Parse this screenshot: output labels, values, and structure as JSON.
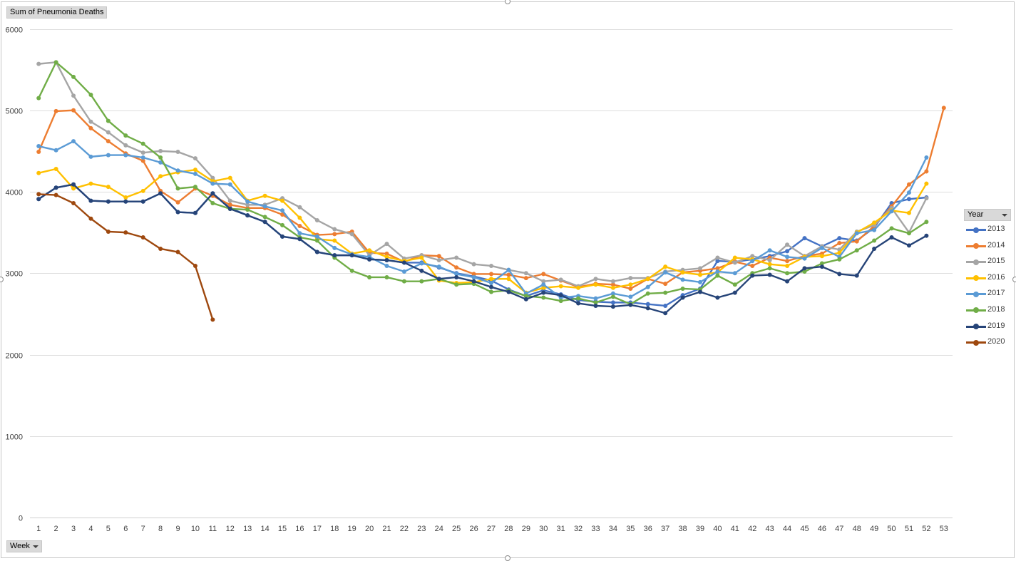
{
  "chart_data": {
    "type": "line",
    "value_field": "Sum of Pneumonia Deaths",
    "axis_field": "Week",
    "legend_field": "Year",
    "legend_position": "right",
    "grid": true,
    "ylim": [
      0,
      6000
    ],
    "y_ticks": [
      "0",
      "1000",
      "2000",
      "3000",
      "4000",
      "5000",
      "6000"
    ],
    "y_tick_values": [
      0,
      1000,
      2000,
      3000,
      4000,
      5000,
      6000
    ],
    "x": [
      "1",
      "2",
      "3",
      "4",
      "5",
      "6",
      "7",
      "8",
      "9",
      "10",
      "11",
      "12",
      "13",
      "14",
      "15",
      "16",
      "17",
      "18",
      "19",
      "20",
      "21",
      "22",
      "23",
      "24",
      "25",
      "26",
      "27",
      "28",
      "29",
      "30",
      "31",
      "32",
      "33",
      "34",
      "35",
      "36",
      "37",
      "38",
      "39",
      "40",
      "41",
      "42",
      "43",
      "44",
      "45",
      "46",
      "47",
      "48",
      "49",
      "50",
      "51",
      "52",
      "53"
    ],
    "series": [
      {
        "name": "2013",
        "color": "#4472C4",
        "values": [
          3910,
          4050,
          4090,
          3890,
          3880,
          3880,
          3880,
          3980,
          3750,
          3740,
          3980,
          3800,
          3710,
          3630,
          3450,
          3420,
          3260,
          3220,
          3220,
          3170,
          3160,
          3130,
          3130,
          3070,
          3000,
          2960,
          2910,
          2800,
          2720,
          2790,
          2740,
          2670,
          2650,
          2640,
          2640,
          2620,
          2600,
          2730,
          2810,
          3150,
          3140,
          3170,
          3210,
          3270,
          3430,
          3330,
          3430,
          3400,
          3560,
          3860,
          3910,
          3930,
          null
        ]
      },
      {
        "name": "2014",
        "color": "#ED7D31",
        "values": [
          4490,
          4990,
          5000,
          4780,
          4620,
          4470,
          4380,
          4010,
          3870,
          4040,
          3950,
          3840,
          3800,
          3800,
          3720,
          3580,
          3470,
          3480,
          3510,
          3250,
          3240,
          3140,
          3220,
          3210,
          3070,
          2990,
          2990,
          2980,
          2940,
          2990,
          2910,
          2830,
          2870,
          2860,
          2810,
          2930,
          2870,
          3010,
          3030,
          3060,
          3140,
          3090,
          3190,
          3150,
          3210,
          3240,
          3370,
          3390,
          3580,
          3820,
          4090,
          4250,
          5030
        ]
      },
      {
        "name": "2015",
        "color": "#A5A5A5",
        "values": [
          5570,
          5590,
          5180,
          4860,
          4730,
          4570,
          4480,
          4500,
          4490,
          4410,
          4170,
          3890,
          3840,
          3840,
          3920,
          3810,
          3650,
          3540,
          3480,
          3220,
          3360,
          3180,
          3220,
          3160,
          3190,
          3110,
          3090,
          3040,
          3000,
          2900,
          2920,
          2840,
          2930,
          2900,
          2940,
          2940,
          3020,
          3040,
          3060,
          3190,
          3130,
          3210,
          3160,
          3350,
          3210,
          3330,
          3290,
          3510,
          3590,
          3800,
          3500,
          3920,
          null
        ]
      },
      {
        "name": "2016",
        "color": "#FFC000",
        "values": [
          4230,
          4280,
          4040,
          4100,
          4060,
          3930,
          4010,
          4190,
          4240,
          4270,
          4130,
          4170,
          3890,
          3950,
          3890,
          3680,
          3420,
          3400,
          3240,
          3280,
          3200,
          3150,
          3190,
          2910,
          2880,
          2890,
          2930,
          2930,
          2760,
          2820,
          2840,
          2820,
          2860,
          2820,
          2860,
          2930,
          3080,
          3010,
          2980,
          3010,
          3190,
          3170,
          3110,
          3090,
          3200,
          3210,
          3250,
          3500,
          3620,
          3770,
          3740,
          4100,
          null
        ]
      },
      {
        "name": "2017",
        "color": "#5B9BD5",
        "values": [
          4560,
          4510,
          4620,
          4430,
          4450,
          4450,
          4420,
          4360,
          4260,
          4220,
          4100,
          4090,
          3880,
          3820,
          3770,
          3490,
          3450,
          3310,
          3230,
          3200,
          3090,
          3020,
          3120,
          3080,
          2990,
          2950,
          2880,
          3040,
          2750,
          2860,
          2700,
          2720,
          2690,
          2750,
          2710,
          2830,
          3010,
          2920,
          2890,
          3020,
          3000,
          3150,
          3280,
          3200,
          3180,
          3310,
          3200,
          3490,
          3530,
          3760,
          3990,
          4420,
          null
        ]
      },
      {
        "name": "2018",
        "color": "#70AD47",
        "values": [
          5150,
          5590,
          5410,
          5190,
          4870,
          4690,
          4590,
          4420,
          4040,
          4060,
          3860,
          3790,
          3780,
          3690,
          3590,
          3440,
          3400,
          3190,
          3030,
          2950,
          2950,
          2900,
          2900,
          2930,
          2860,
          2870,
          2770,
          2790,
          2720,
          2700,
          2660,
          2690,
          2640,
          2710,
          2620,
          2750,
          2760,
          2810,
          2800,
          2970,
          2860,
          3000,
          3060,
          3000,
          3020,
          3120,
          3170,
          3280,
          3400,
          3550,
          3490,
          3630,
          null
        ]
      },
      {
        "name": "2019",
        "color": "#264478",
        "values": [
          3910,
          4050,
          4090,
          3890,
          3880,
          3880,
          3880,
          3980,
          3750,
          3740,
          3980,
          3790,
          3710,
          3630,
          3450,
          3420,
          3260,
          3220,
          3220,
          3170,
          3160,
          3130,
          3030,
          2930,
          2950,
          2900,
          2830,
          2770,
          2680,
          2760,
          2730,
          2630,
          2600,
          2590,
          2610,
          2570,
          2510,
          2700,
          2770,
          2700,
          2760,
          2970,
          2980,
          2900,
          3060,
          3080,
          2990,
          2970,
          3300,
          3440,
          3340,
          3460,
          null
        ]
      },
      {
        "name": "2020",
        "color": "#9E480E",
        "values": [
          3970,
          3960,
          3860,
          3670,
          3510,
          3500,
          3440,
          3300,
          3260,
          3090,
          2430,
          null,
          null,
          null,
          null,
          null,
          null,
          null,
          null,
          null,
          null,
          null,
          null,
          null,
          null,
          null,
          null,
          null,
          null,
          null,
          null,
          null,
          null,
          null,
          null,
          null,
          null,
          null,
          null,
          null,
          null,
          null,
          null,
          null,
          null,
          null,
          null,
          null,
          null,
          null,
          null,
          null,
          null
        ]
      }
    ]
  }
}
